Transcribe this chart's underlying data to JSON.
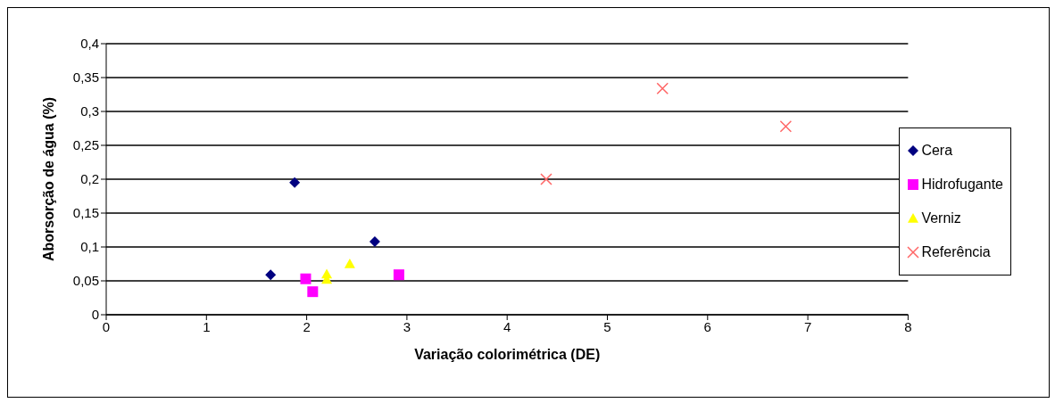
{
  "chart_data": {
    "type": "scatter",
    "xlabel": "Variação colorimétrica (DE)",
    "ylabel": "Aborsorção de água (%)",
    "xlim": [
      0,
      8
    ],
    "xticks": [
      0,
      1,
      2,
      3,
      4,
      5,
      6,
      7,
      8
    ],
    "ylim": [
      0,
      0.4
    ],
    "yticks": [
      {
        "value": 0,
        "label": "0"
      },
      {
        "value": 0.05,
        "label": "0,05"
      },
      {
        "value": 0.1,
        "label": "0,1"
      },
      {
        "value": 0.15,
        "label": "0,15"
      },
      {
        "value": 0.2,
        "label": "0,2"
      },
      {
        "value": 0.25,
        "label": "0,25"
      },
      {
        "value": 0.3,
        "label": "0,3"
      },
      {
        "value": 0.35,
        "label": "0,35"
      },
      {
        "value": 0.4,
        "label": "0,4"
      }
    ],
    "grid": "y",
    "legend": "right",
    "series": [
      {
        "name": "Cera",
        "color": "#000080",
        "marker": "diamond",
        "x": [
          1.64,
          1.88,
          2.68
        ],
        "values": [
          0.059,
          0.195,
          0.108
        ]
      },
      {
        "name": "Hidrofugante",
        "color": "#ff00ff",
        "marker": "square",
        "x": [
          1.99,
          2.06,
          2.92
        ],
        "values": [
          0.053,
          0.034,
          0.059
        ]
      },
      {
        "name": "Verniz",
        "color": "#ffff00",
        "marker": "triangle",
        "x": [
          2.2,
          2.2,
          2.43
        ],
        "values": [
          0.06,
          0.052,
          0.075
        ]
      },
      {
        "name": "Referência",
        "color": "#ff6666",
        "marker": "cross",
        "x": [
          4.39,
          5.55,
          6.78
        ],
        "values": [
          0.2,
          0.334,
          0.278
        ]
      }
    ]
  }
}
